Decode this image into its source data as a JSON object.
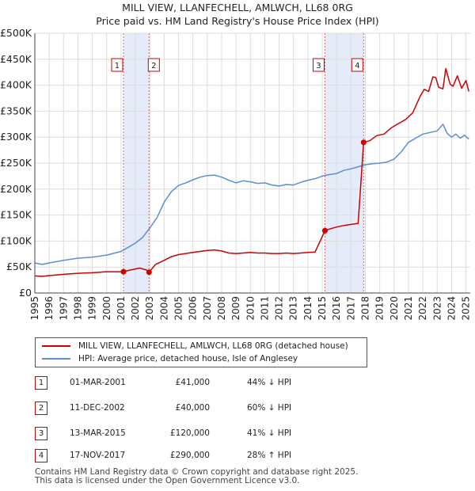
{
  "title": "MILL VIEW, LLANFECHELL, AMLWCH, LL68 0RG",
  "subtitle": "Price paid vs. HM Land Registry's House Price Index (HPI)",
  "colors": {
    "property": "#cc0000",
    "hpi": "#5b8dd6",
    "shade": "#dde6f7",
    "grid": "#dddddd"
  },
  "chart_data": {
    "type": "line",
    "title": "MILL VIEW, LLANFECHELL, AMLWCH, LL68 0RG",
    "xlim": [
      1995,
      2025.3
    ],
    "ylim": [
      0,
      500000
    ],
    "yticks": [
      {
        "v": 0,
        "label": "£0"
      },
      {
        "v": 50000,
        "label": "£50K"
      },
      {
        "v": 100000,
        "label": "£100K"
      },
      {
        "v": 150000,
        "label": "£150K"
      },
      {
        "v": 200000,
        "label": "£200K"
      },
      {
        "v": 250000,
        "label": "£250K"
      },
      {
        "v": 300000,
        "label": "£300K"
      },
      {
        "v": 350000,
        "label": "£350K"
      },
      {
        "v": 400000,
        "label": "£400K"
      },
      {
        "v": 450000,
        "label": "£450K"
      },
      {
        "v": 500000,
        "label": "£500K"
      }
    ],
    "xticks": [
      "1995",
      "1996",
      "1997",
      "1998",
      "1999",
      "2000",
      "2001",
      "2002",
      "2003",
      "2004",
      "2005",
      "2006",
      "2007",
      "2008",
      "2009",
      "2010",
      "2011",
      "2012",
      "2013",
      "2014",
      "2015",
      "2016",
      "2017",
      "2018",
      "2019",
      "2020",
      "2021",
      "2022",
      "2023",
      "2024",
      "2025"
    ],
    "shaded_ranges": [
      [
        2001.17,
        2002.95
      ],
      [
        2015.2,
        2017.88
      ]
    ],
    "series": [
      {
        "name": "MILL VIEW, LLANFECHELL, AMLWCH, LL68 0RG (detached house)",
        "x": [
          1995.0,
          1995.5,
          1996,
          1997,
          1998,
          1999,
          2000,
          2001.17,
          2001.6,
          2002.3,
          2002.8,
          2002.95,
          2003.4,
          2004,
          2004.5,
          2005,
          2005.5,
          2006,
          2006.5,
          2007,
          2007.5,
          2008,
          2008.5,
          2009,
          2009.5,
          2010,
          2010.5,
          2011,
          2011.5,
          2012,
          2012.5,
          2013,
          2013.5,
          2014,
          2014.5,
          2015.19,
          2015.6,
          2016,
          2016.5,
          2017,
          2017.5,
          2017.88,
          2018.3,
          2018.8,
          2019.3,
          2019.8,
          2020.3,
          2020.8,
          2021.3,
          2021.8,
          2022.1,
          2022.4,
          2022.7,
          2022.9,
          2023.1,
          2023.4,
          2023.6,
          2023.9,
          2024.1,
          2024.4,
          2024.7,
          2025.0,
          2025.2
        ],
        "y": [
          33000,
          32000,
          33500,
          36000,
          38000,
          39000,
          41000,
          41000,
          44000,
          48000,
          44000,
          40000,
          55000,
          63000,
          70000,
          74000,
          76000,
          78000,
          80000,
          82000,
          83000,
          81000,
          77000,
          76000,
          77000,
          78000,
          77000,
          77000,
          76000,
          76000,
          77000,
          76000,
          77000,
          78000,
          79000,
          120000,
          124000,
          127000,
          130000,
          132000,
          134000,
          290000,
          293000,
          303000,
          306000,
          318000,
          326000,
          334000,
          347000,
          378000,
          392000,
          388000,
          416000,
          415000,
          396000,
          393000,
          432000,
          402000,
          398000,
          418000,
          394000,
          409000,
          388000
        ]
      },
      {
        "name": "HPI: Average price, detached house, Isle of Anglesey",
        "x": [
          1995.0,
          1995.5,
          1996,
          1997,
          1998,
          1999,
          2000,
          2001,
          2001.5,
          2002,
          2002.5,
          2003,
          2003.5,
          2004,
          2004.5,
          2005,
          2005.5,
          2006,
          2006.5,
          2007,
          2007.5,
          2008,
          2008.5,
          2009,
          2009.5,
          2010,
          2010.5,
          2011,
          2011.5,
          2012,
          2012.5,
          2013,
          2013.5,
          2014,
          2014.5,
          2015,
          2015.5,
          2016,
          2016.5,
          2017,
          2017.5,
          2018,
          2018.5,
          2019,
          2019.5,
          2020,
          2020.5,
          2021,
          2021.5,
          2022,
          2022.5,
          2023,
          2023.4,
          2023.7,
          2024,
          2024.3,
          2024.6,
          2024.9,
          2025.2
        ],
        "y": [
          58000,
          55000,
          58000,
          63000,
          67000,
          69000,
          73000,
          80000,
          88000,
          96000,
          107000,
          125000,
          145000,
          175000,
          195000,
          207000,
          212000,
          218000,
          223000,
          226000,
          227000,
          223000,
          217000,
          212000,
          216000,
          214000,
          211000,
          212000,
          208000,
          206000,
          209000,
          208000,
          213000,
          217000,
          220000,
          225000,
          228000,
          230000,
          236000,
          239000,
          243000,
          247000,
          249000,
          250000,
          252000,
          258000,
          272000,
          290000,
          298000,
          306000,
          309000,
          312000,
          325000,
          307000,
          300000,
          306000,
          298000,
          304000,
          296000
        ]
      }
    ],
    "sales": [
      {
        "n": "1",
        "x": 2001.17,
        "y": 41000
      },
      {
        "n": "2",
        "x": 2002.95,
        "y": 40000
      },
      {
        "n": "3",
        "x": 2015.19,
        "y": 120000
      },
      {
        "n": "4",
        "x": 2017.88,
        "y": 290000
      }
    ]
  },
  "legend": {
    "property_label": "MILL VIEW, LLANFECHELL, AMLWCH, LL68 0RG (detached house)",
    "hpi_label": "HPI: Average price, detached house, Isle of Anglesey"
  },
  "table": [
    {
      "n": "1",
      "date": "01-MAR-2001",
      "price": "£41,000",
      "hpi": "44% ↓ HPI"
    },
    {
      "n": "2",
      "date": "11-DEC-2002",
      "price": "£40,000",
      "hpi": "60% ↓ HPI"
    },
    {
      "n": "3",
      "date": "13-MAR-2015",
      "price": "£120,000",
      "hpi": "41% ↓ HPI"
    },
    {
      "n": "4",
      "date": "17-NOV-2017",
      "price": "£290,000",
      "hpi": "28% ↑ HPI"
    }
  ],
  "footer": {
    "line1": "Contains HM Land Registry data © Crown copyright and database right 2025.",
    "line2": "This data is licensed under the Open Government Licence v3.0."
  }
}
